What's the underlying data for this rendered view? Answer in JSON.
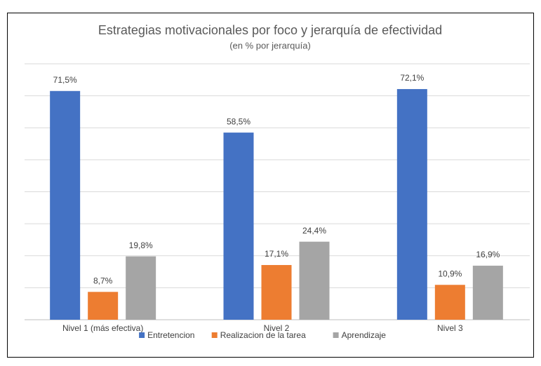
{
  "chart_data": {
    "type": "bar",
    "title": "Estrategias motivacionales por foco y jerarquía de efectividad",
    "subtitle": "(en % por jerarquía)",
    "categories": [
      "Nivel 1 (más efectiva)",
      "Nivel 2",
      "Nivel 3"
    ],
    "series": [
      {
        "name": "Entretencion",
        "color": "#4472c4",
        "values": [
          71.5,
          58.5,
          72.1
        ],
        "value_labels": [
          "71,5%",
          "58,5%",
          "72,1%"
        ]
      },
      {
        "name": "Realizacion de la tarea",
        "color": "#ed7d31",
        "values": [
          8.7,
          17.1,
          10.9
        ],
        "value_labels": [
          "8,7%",
          "17,1%",
          "10,9%"
        ]
      },
      {
        "name": "Aprendizaje",
        "color": "#a5a5a5",
        "values": [
          19.8,
          24.4,
          16.9
        ],
        "value_labels": [
          "19,8%",
          "24,4%",
          "16,9%"
        ]
      }
    ],
    "ylim": [
      0,
      80
    ],
    "yticks": [
      0,
      10,
      20,
      30,
      40,
      50,
      60,
      70,
      80
    ],
    "grid": true,
    "legend": "bottom"
  }
}
